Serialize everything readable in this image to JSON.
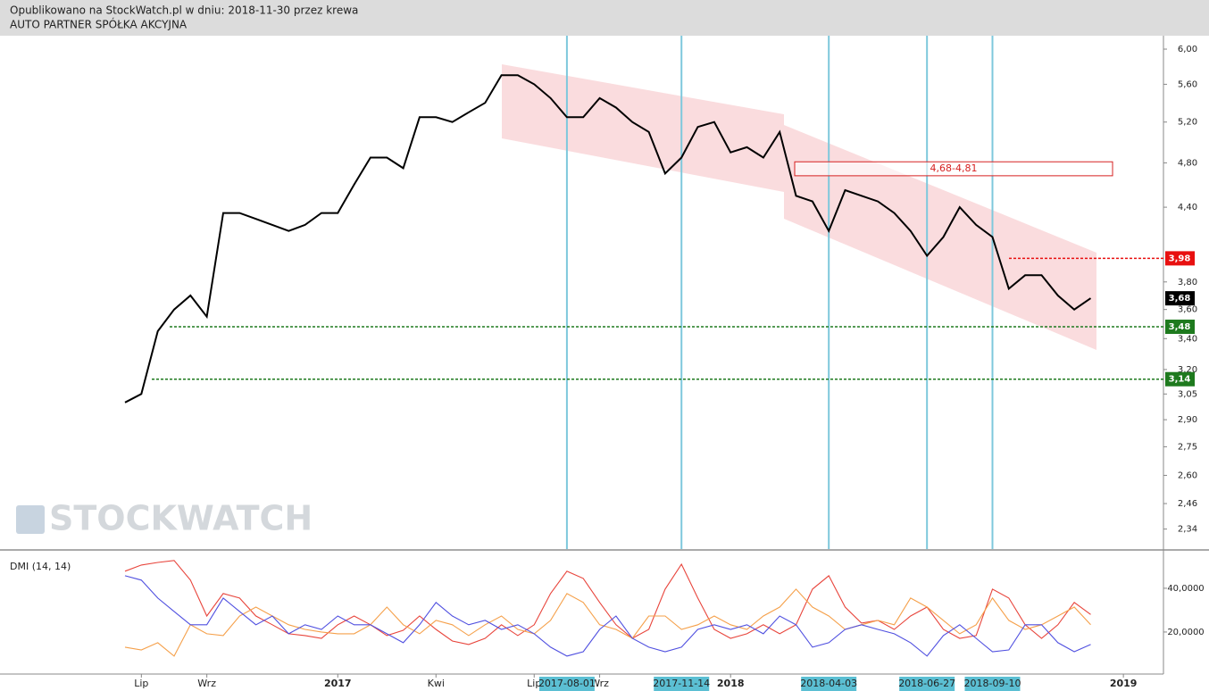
{
  "header": {
    "published": "Opublikowano na StockWatch.pl w dniu: 2018-11-30 przez krewa",
    "instrument": "AUTO PARTNER SPÓŁKA AKCYJNA"
  },
  "watermark": "STOCKWATCH",
  "chart_data": {
    "type": "line",
    "categories": [
      null,
      "Lip",
      null,
      null,
      null,
      "Wrz",
      null,
      null,
      null,
      null,
      null,
      null,
      null,
      "2017",
      null,
      null,
      null,
      null,
      null,
      "Kwi",
      null,
      null,
      null,
      null,
      null,
      "Lip",
      null,
      "2017-08-01",
      null,
      "Wrz",
      null,
      null,
      null,
      null,
      "2017-11-14",
      null,
      null,
      "2018",
      null,
      null,
      null,
      null,
      null,
      "2018-04-03",
      null,
      null,
      null,
      null,
      null,
      "2018-06-27",
      null,
      null,
      null,
      "2018-09-10",
      null,
      null,
      null,
      null,
      null,
      null,
      null,
      "2019",
      null,
      null
    ],
    "vlines": [
      "2017-08-01",
      "2017-11-14",
      "2018-04-03",
      "2018-06-27",
      "2018-09-10"
    ],
    "price": {
      "log_scale": true,
      "color": "#000000",
      "ylim": [
        2.25,
        6.16
      ],
      "yticks": [
        {
          "value": 2.34,
          "label": "2,34"
        },
        {
          "value": 2.46,
          "label": "2,46"
        },
        {
          "value": 2.6,
          "label": "2,60"
        },
        {
          "value": 2.75,
          "label": "2,75"
        },
        {
          "value": 2.9,
          "label": "2,90"
        },
        {
          "value": 3.05,
          "label": "3,05"
        },
        {
          "value": 3.2,
          "label": "3,20"
        },
        {
          "value": 3.4,
          "label": "3,40"
        },
        {
          "value": 3.6,
          "label": "3,60"
        },
        {
          "value": 3.8,
          "label": "3,80"
        },
        {
          "value": 4.4,
          "label": "4,40"
        },
        {
          "value": 4.8,
          "label": "4,80"
        },
        {
          "value": 5.2,
          "label": "5,20"
        },
        {
          "value": 5.6,
          "label": "5,60"
        },
        {
          "value": 6,
          "label": "6,00"
        }
      ],
      "values": [
        3.0,
        3.05,
        3.45,
        3.6,
        3.7,
        3.55,
        4.35,
        4.35,
        4.3,
        4.25,
        4.2,
        4.25,
        4.35,
        4.35,
        4.6,
        4.85,
        4.85,
        4.75,
        5.25,
        5.25,
        5.2,
        5.3,
        5.4,
        5.7,
        5.7,
        5.6,
        5.45,
        5.25,
        5.25,
        5.45,
        5.35,
        5.2,
        5.1,
        4.7,
        4.85,
        5.15,
        5.2,
        4.9,
        4.95,
        4.85,
        5.1,
        4.5,
        4.45,
        4.2,
        4.55,
        4.5,
        4.45,
        4.35,
        4.2,
        4.0,
        4.15,
        4.4,
        4.25,
        4.15,
        3.75,
        3.85,
        3.85,
        3.7,
        3.6,
        3.68,
        null,
        null,
        null,
        null
      ],
      "levels": [
        {
          "value": 3.98,
          "label": "3,98",
          "color": "#e81010"
        },
        {
          "value": 3.48,
          "label": "3,48",
          "color": "#1e7a1e"
        },
        {
          "value": 3.14,
          "label": "3,14",
          "color": "#1e7a1e"
        }
      ],
      "last_price": {
        "value": 3.68,
        "label": "3,68",
        "color": "#000000"
      },
      "zone": {
        "range": [
          4.68,
          4.81
        ],
        "label": "4,68-4,81",
        "color": "#d62020"
      }
    },
    "dmi": {
      "title": "DMI (14, 14)",
      "ylim": [
        0.8,
        57.1
      ],
      "yticks": [
        {
          "value": 20,
          "label": "20,0000"
        },
        {
          "value": 40,
          "label": "40,0000"
        }
      ],
      "series": [
        {
          "color": "#e8453c",
          "values": [
            47.8,
            50.6,
            51.8,
            52.7,
            43.7,
            27.3,
            37.6,
            35.5,
            27.3,
            23.3,
            19.2,
            18.4,
            17.1,
            23.3,
            27.3,
            23.3,
            18.4,
            20.8,
            27.3,
            21.2,
            15.9,
            14.3,
            17.1,
            23.3,
            18.4,
            23.3,
            37.6,
            47.8,
            44.5,
            33.5,
            23.3,
            17.1,
            21.2,
            39.6,
            51,
            35.5,
            21.2,
            17.1,
            19.2,
            23.3,
            19.2,
            23.3,
            39.6,
            45.7,
            31.4,
            24.1,
            25.3,
            21.2,
            27.3,
            31.4,
            21.2,
            17.1,
            18.4,
            39.6,
            35.5,
            23.3,
            17.1,
            23.3,
            33.5,
            28,
            null,
            null,
            null,
            null
          ]
        },
        {
          "color": "#f5a04a",
          "values": [
            13.1,
            11.8,
            15.1,
            9,
            23.3,
            19.2,
            18.4,
            27.3,
            31.4,
            27.3,
            23.3,
            21.2,
            20,
            19.2,
            19.2,
            23.3,
            31.4,
            23.3,
            19.2,
            25.3,
            23.3,
            18.4,
            23.3,
            27.3,
            21.2,
            19.2,
            25.3,
            37.6,
            33.5,
            23.3,
            21.2,
            17.1,
            27.3,
            27.3,
            21.2,
            23.3,
            27.3,
            23.3,
            21.2,
            27.3,
            31.4,
            39.6,
            31.4,
            27.3,
            21.2,
            23.3,
            25.3,
            23.3,
            35.5,
            31.4,
            25.3,
            19.2,
            23.3,
            35.5,
            25.3,
            21.2,
            23.3,
            27.3,
            31.4,
            23.3,
            null,
            null,
            null,
            null
          ]
        },
        {
          "color": "#5050e0",
          "values": [
            45.7,
            43.7,
            35.5,
            29.4,
            23.3,
            23.3,
            35.5,
            29.4,
            23.3,
            27.3,
            19.2,
            23.3,
            21.2,
            27.3,
            23.3,
            23.3,
            19.2,
            15.1,
            23.3,
            33.5,
            27.3,
            23.3,
            25.3,
            21.2,
            23.3,
            19.2,
            13.1,
            9,
            11,
            21.2,
            27.3,
            17.1,
            13.1,
            11,
            13.1,
            21.2,
            23.3,
            21.2,
            23.3,
            19.2,
            27.3,
            23.3,
            13.1,
            15.1,
            21.2,
            23.3,
            21.2,
            19.2,
            15.1,
            9,
            18.4,
            23.3,
            17.1,
            11,
            11.8,
            23.3,
            23.3,
            15.1,
            11,
            14.3,
            null,
            null,
            null,
            null
          ]
        }
      ]
    }
  }
}
